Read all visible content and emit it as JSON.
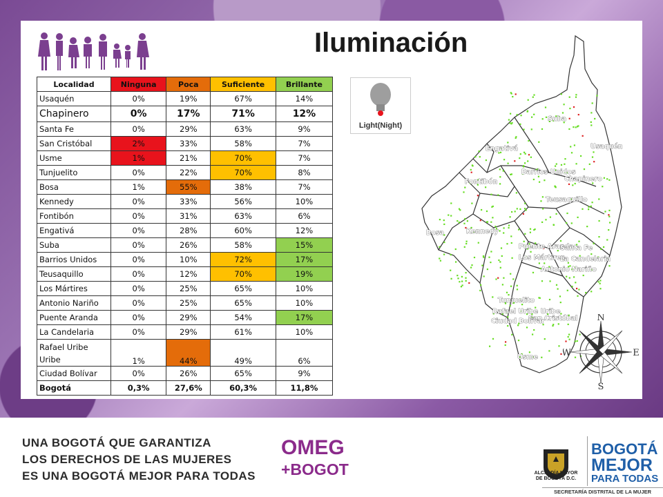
{
  "title": "Iluminación",
  "table": {
    "headers": [
      "Localidad",
      "Ninguna",
      "Poca",
      "Suficiente",
      "Brillante"
    ],
    "header_colors": [
      "#ffffff",
      "#e8131c",
      "#e46c0a",
      "#ffc000",
      "#92d050"
    ],
    "rows": [
      {
        "name": "Usaquén",
        "values": [
          "0%",
          "19%",
          "67%",
          "14%"
        ],
        "hl": [
          0,
          0,
          0,
          0
        ]
      },
      {
        "name": "Chapinero",
        "values": [
          "0%",
          "17%",
          "71%",
          "12%"
        ],
        "hl": [
          0,
          0,
          0,
          0
        ],
        "big": true
      },
      {
        "name": "Santa Fe",
        "values": [
          "0%",
          "29%",
          "63%",
          "9%"
        ],
        "hl": [
          0,
          0,
          0,
          0
        ]
      },
      {
        "name": "San Cristóbal",
        "values": [
          "2%",
          "33%",
          "58%",
          "7%"
        ],
        "hl": [
          1,
          0,
          0,
          0
        ]
      },
      {
        "name": "Usme",
        "values": [
          "1%",
          "21%",
          "70%",
          "7%"
        ],
        "hl": [
          1,
          0,
          1,
          0
        ]
      },
      {
        "name": "Tunjuelito",
        "values": [
          "0%",
          "22%",
          "70%",
          "8%"
        ],
        "hl": [
          0,
          0,
          1,
          0
        ]
      },
      {
        "name": "Bosa",
        "values": [
          "1%",
          "55%",
          "38%",
          "7%"
        ],
        "hl": [
          0,
          1,
          0,
          0
        ]
      },
      {
        "name": "Kennedy",
        "values": [
          "0%",
          "33%",
          "56%",
          "10%"
        ],
        "hl": [
          0,
          0,
          0,
          0
        ]
      },
      {
        "name": "Fontibón",
        "values": [
          "0%",
          "31%",
          "63%",
          "6%"
        ],
        "hl": [
          0,
          0,
          0,
          0
        ]
      },
      {
        "name": "Engativá",
        "values": [
          "0%",
          "28%",
          "60%",
          "12%"
        ],
        "hl": [
          0,
          0,
          0,
          0
        ]
      },
      {
        "name": "Suba",
        "values": [
          "0%",
          "26%",
          "58%",
          "15%"
        ],
        "hl": [
          0,
          0,
          0,
          1
        ]
      },
      {
        "name": "Barrios Unidos",
        "values": [
          "0%",
          "10%",
          "72%",
          "17%"
        ],
        "hl": [
          0,
          0,
          1,
          1
        ]
      },
      {
        "name": "Teusaquillo",
        "values": [
          "0%",
          "12%",
          "70%",
          "19%"
        ],
        "hl": [
          0,
          0,
          1,
          1
        ]
      },
      {
        "name": "Los Mártires",
        "values": [
          "0%",
          "25%",
          "65%",
          "10%"
        ],
        "hl": [
          0,
          0,
          0,
          0
        ]
      },
      {
        "name": "Antonio Nariño",
        "values": [
          "0%",
          "25%",
          "65%",
          "10%"
        ],
        "hl": [
          0,
          0,
          0,
          0
        ]
      },
      {
        "name": "Puente Aranda",
        "values": [
          "0%",
          "29%",
          "54%",
          "17%"
        ],
        "hl": [
          0,
          0,
          0,
          1
        ]
      },
      {
        "name": "La Candelaria",
        "values": [
          "0%",
          "29%",
          "61%",
          "10%"
        ],
        "hl": [
          0,
          0,
          0,
          0
        ]
      },
      {
        "name": "Rafael Uribe Uribe",
        "values": [
          "1%",
          "44%",
          "49%",
          "6%"
        ],
        "hl": [
          0,
          1,
          0,
          0
        ],
        "tall": true
      },
      {
        "name": "Ciudad Bolívar",
        "values": [
          "0%",
          "26%",
          "65%",
          "9%"
        ],
        "hl": [
          0,
          0,
          0,
          0
        ]
      },
      {
        "name": "Bogotá",
        "values": [
          "0,3%",
          "27,6%",
          "60,3%",
          "11,8%"
        ],
        "hl": [
          0,
          0,
          0,
          0
        ],
        "total": true
      }
    ]
  },
  "legend": {
    "label": "Light(Night)",
    "bulb_color": "#9e9e9e",
    "base_color": "#e8131c"
  },
  "map": {
    "labels": [
      "Suba",
      "Engativá",
      "Usaquén",
      "Fontibón",
      "Barrios Unidos",
      "Chapinero",
      "Teusaquillo",
      "Bosa",
      "Kennedy",
      "Puente Aranda",
      "Los Mártires",
      "Santa Fe",
      "La Candelaria",
      "Antonio Nariño",
      "Tunjuelito",
      "Rafael Uribe Uribe",
      "San Cristóbal",
      "Ciudad Bolívar",
      "Usme"
    ],
    "dot_color": "#66dd22",
    "alert_color": "#dd2222"
  },
  "compass": {
    "n": "N",
    "s": "S",
    "e": "E",
    "w": "W"
  },
  "footer": {
    "lines": [
      "UNA BOGOTÁ QUE GARANTIZA",
      "LOS DERECHOS DE LAS MUJERES",
      "ES UNA BOGOTÁ MEJOR PARA TODAS"
    ],
    "omeg_top": "OMEG",
    "omeg_bottom": "+BOGOTÁ",
    "alcaldia_l1": "ALCALDÍA MAYOR",
    "alcaldia_l2": "DE BOGOTÁ D.C.",
    "bm_l1": "BOGOTÁ",
    "bm_l2": "MEJOR",
    "bm_l3": "PARA TODAS",
    "secretaria": "SECRETARÍA DISTRITAL DE LA MUJER",
    "purple": "#8b2b8b"
  }
}
